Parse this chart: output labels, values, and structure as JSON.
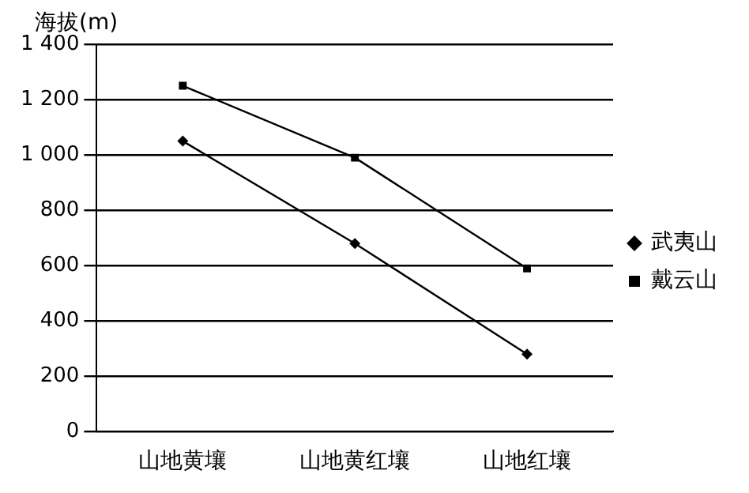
{
  "chart_data": {
    "type": "line",
    "ylabel": "海拔(m)",
    "categories": [
      "山地黄壤",
      "山地黄红壤",
      "山地红壤"
    ],
    "series": [
      {
        "name": "武夷山",
        "color": "#000000",
        "values": [
          1050,
          680,
          280
        ],
        "marker": "diamond"
      },
      {
        "name": "戴云山",
        "color": "#000000",
        "values": [
          1250,
          990,
          590
        ],
        "marker": "square"
      }
    ],
    "ylim": [
      0,
      1400
    ],
    "yticks": [
      0,
      200,
      400,
      600,
      800,
      {
        "value": 1000,
        "label": "1 000"
      },
      {
        "value": 1200,
        "label": "1 200"
      },
      {
        "value": 1400,
        "label": "1 400"
      }
    ],
    "grid": "y",
    "legend": "right",
    "line_style": "solid"
  }
}
